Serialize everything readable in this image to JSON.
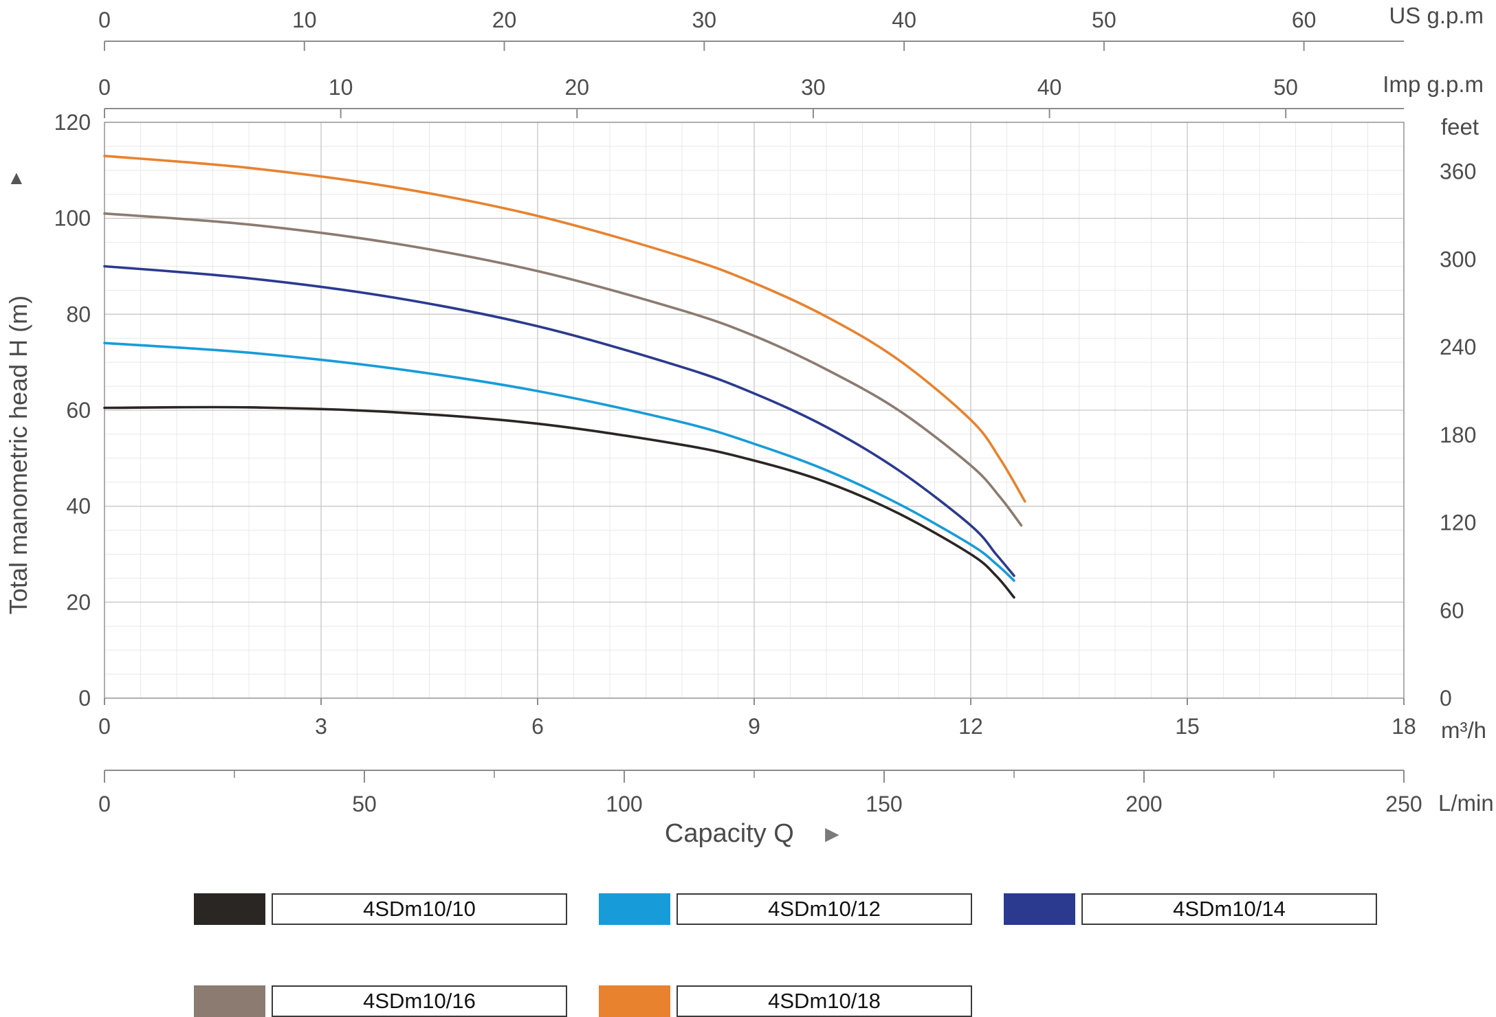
{
  "icons": {
    "up_arrow": "▲",
    "right_arrow": "►"
  },
  "chart_data": {
    "type": "line",
    "title": "",
    "xlabel": "Capacity  Q",
    "x_primary": {
      "label": "m³/h",
      "min": 0,
      "max": 18,
      "ticks": [
        0,
        3,
        6,
        9,
        12,
        15,
        18
      ]
    },
    "x_lmin": {
      "label": "L/min",
      "min": 0,
      "max": 250,
      "ticks": [
        0,
        50,
        100,
        150,
        200,
        250
      ],
      "minor_step": 25
    },
    "x_usgpm": {
      "label": "US g.p.m",
      "min": 0,
      "max": 65,
      "ticks": [
        0,
        10,
        20,
        30,
        40,
        50,
        60
      ]
    },
    "x_impgpm": {
      "label": "Imp g.p.m",
      "min": 0,
      "max": 55,
      "ticks": [
        0,
        10,
        20,
        30,
        40,
        50
      ]
    },
    "y_primary": {
      "label": "Total manometric head  H  (m)",
      "min": 0,
      "max": 120,
      "ticks": [
        0,
        20,
        40,
        60,
        80,
        100,
        120
      ]
    },
    "y_feet": {
      "label": "feet",
      "ticks": [
        0,
        60,
        120,
        180,
        240,
        300,
        360
      ],
      "meters_per_foot": 0.3048
    },
    "grid": {
      "x_minor_step": 0.5,
      "y_minor_step": 5,
      "x_major_step": 3,
      "y_major_step": 20
    },
    "series": [
      {
        "name": "4SDm10/10",
        "color": "#2a2623",
        "points": [
          [
            0,
            60.5
          ],
          [
            2,
            60.6
          ],
          [
            4,
            59.6
          ],
          [
            6,
            57.2
          ],
          [
            8,
            52.8
          ],
          [
            9,
            49.5
          ],
          [
            10,
            45
          ],
          [
            11,
            38.5
          ],
          [
            12,
            30
          ],
          [
            12.35,
            25.5
          ],
          [
            12.6,
            21
          ]
        ]
      },
      {
        "name": "4SDm10/12",
        "color": "#179cd9",
        "points": [
          [
            0,
            74
          ],
          [
            2,
            72
          ],
          [
            4,
            68.7
          ],
          [
            6,
            64
          ],
          [
            8,
            57.5
          ],
          [
            9,
            53
          ],
          [
            10,
            47.5
          ],
          [
            11,
            40.5
          ],
          [
            12,
            32
          ],
          [
            12.35,
            28
          ],
          [
            12.6,
            24.5
          ]
        ]
      },
      {
        "name": "4SDm10/14",
        "color": "#2b3a8f",
        "points": [
          [
            0,
            90
          ],
          [
            2,
            87.5
          ],
          [
            4,
            83.5
          ],
          [
            6,
            77.5
          ],
          [
            8,
            69
          ],
          [
            9,
            63.5
          ],
          [
            10,
            56.5
          ],
          [
            11,
            47.5
          ],
          [
            12,
            36
          ],
          [
            12.35,
            30
          ],
          [
            12.6,
            25.5
          ]
        ]
      },
      {
        "name": "4SDm10/16",
        "color": "#8c7b71",
        "points": [
          [
            0,
            101
          ],
          [
            2,
            98.7
          ],
          [
            4,
            94.8
          ],
          [
            6,
            89
          ],
          [
            8,
            80.8
          ],
          [
            9,
            75.5
          ],
          [
            10,
            68.5
          ],
          [
            11,
            60
          ],
          [
            12,
            48.5
          ],
          [
            12.4,
            42
          ],
          [
            12.7,
            36
          ]
        ]
      },
      {
        "name": "4SDm10/18",
        "color": "#e8822f",
        "points": [
          [
            0,
            113
          ],
          [
            2,
            110.5
          ],
          [
            4,
            106.5
          ],
          [
            6,
            100.5
          ],
          [
            8,
            92
          ],
          [
            9,
            86.5
          ],
          [
            10,
            79.5
          ],
          [
            11,
            70.5
          ],
          [
            12,
            58
          ],
          [
            12.4,
            50
          ],
          [
            12.75,
            41
          ]
        ]
      }
    ]
  }
}
